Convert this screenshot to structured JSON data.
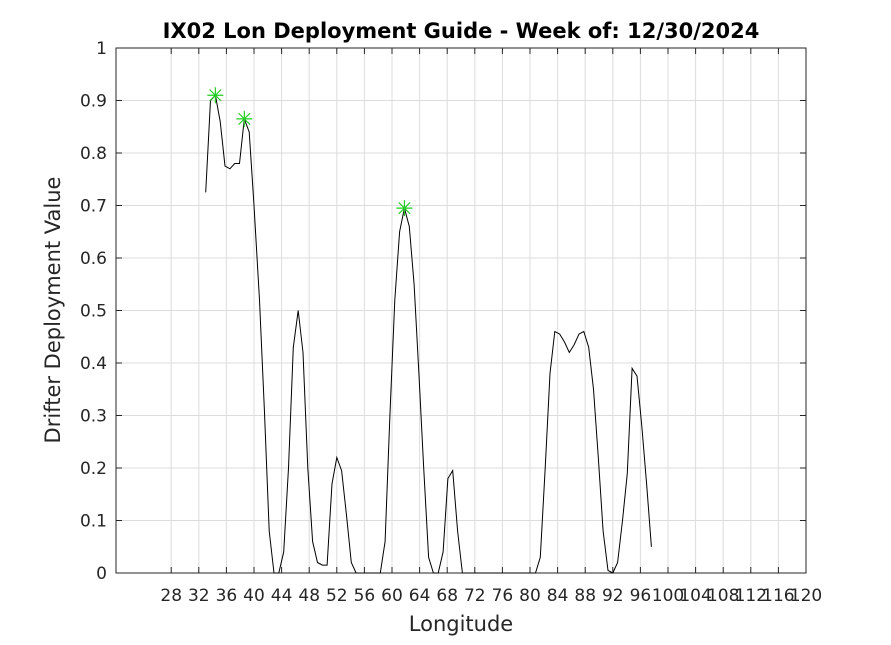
{
  "chart_data": {
    "type": "line",
    "title": "IX02 Lon Deployment Guide - Week of: 12/30/2024",
    "xlabel": "Longitude",
    "ylabel": "Drifter Deployment Value",
    "xlim": [
      20,
      120
    ],
    "ylim": [
      0,
      1
    ],
    "xticks": [
      28,
      32,
      36,
      40,
      44,
      48,
      52,
      56,
      60,
      64,
      68,
      72,
      76,
      80,
      84,
      88,
      92,
      96,
      100,
      104,
      108,
      112,
      116,
      120
    ],
    "yticks": [
      0,
      0.1,
      0.2,
      0.3,
      0.4,
      0.5,
      0.6,
      0.7,
      0.8,
      0.9,
      1
    ],
    "ytick_labels": [
      "0",
      "0.1",
      "0.2",
      "0.3",
      "0.4",
      "0.5",
      "0.6",
      "0.7",
      "0.8",
      "0.9",
      "1"
    ],
    "grid": true,
    "series": [
      {
        "color": "#000000",
        "points": [
          [
            33,
            0.725
          ],
          [
            33.7,
            0.9
          ],
          [
            34.4,
            0.91
          ],
          [
            35.1,
            0.86
          ],
          [
            35.8,
            0.775
          ],
          [
            36.5,
            0.77
          ],
          [
            37.2,
            0.78
          ],
          [
            37.9,
            0.78
          ],
          [
            38.6,
            0.865
          ],
          [
            39.3,
            0.84
          ],
          [
            40,
            0.7
          ],
          [
            40.8,
            0.52
          ],
          [
            41.5,
            0.31
          ],
          [
            42.2,
            0.08
          ],
          [
            42.9,
            0.0
          ],
          [
            43.6,
            0.0
          ],
          [
            44.3,
            0.04
          ],
          [
            45,
            0.2
          ],
          [
            45.7,
            0.43
          ],
          [
            46.4,
            0.5
          ],
          [
            47.1,
            0.42
          ],
          [
            47.8,
            0.2
          ],
          [
            48.5,
            0.06
          ],
          [
            49.2,
            0.02
          ],
          [
            49.9,
            0.015
          ],
          [
            50.6,
            0.015
          ],
          [
            51.3,
            0.17
          ],
          [
            52,
            0.22
          ],
          [
            52.7,
            0.195
          ],
          [
            53.4,
            0.11
          ],
          [
            54.1,
            0.02
          ],
          [
            54.8,
            0.0
          ],
          [
            55.5,
            0.0
          ],
          [
            58.3,
            0.0
          ],
          [
            59,
            0.06
          ],
          [
            59.7,
            0.3
          ],
          [
            60.4,
            0.52
          ],
          [
            61.1,
            0.65
          ],
          [
            61.8,
            0.695
          ],
          [
            62.5,
            0.66
          ],
          [
            63.2,
            0.55
          ],
          [
            63.9,
            0.38
          ],
          [
            64.6,
            0.2
          ],
          [
            65.3,
            0.03
          ],
          [
            66,
            0.0
          ],
          [
            66.7,
            0.0
          ],
          [
            67.4,
            0.04
          ],
          [
            68.1,
            0.18
          ],
          [
            68.8,
            0.195
          ],
          [
            69.5,
            0.08
          ],
          [
            70.2,
            0.0
          ],
          [
            80.8,
            0.0
          ],
          [
            81.5,
            0.03
          ],
          [
            82.2,
            0.2
          ],
          [
            82.9,
            0.38
          ],
          [
            83.6,
            0.46
          ],
          [
            84.3,
            0.455
          ],
          [
            85,
            0.44
          ],
          [
            85.7,
            0.42
          ],
          [
            86.4,
            0.435
          ],
          [
            87.1,
            0.455
          ],
          [
            87.8,
            0.46
          ],
          [
            88.5,
            0.43
          ],
          [
            89.2,
            0.35
          ],
          [
            89.9,
            0.22
          ],
          [
            90.6,
            0.08
          ],
          [
            91.3,
            0.005
          ],
          [
            92,
            0.0
          ],
          [
            92.7,
            0.02
          ],
          [
            93.4,
            0.1
          ],
          [
            94.1,
            0.19
          ],
          [
            94.8,
            0.39
          ],
          [
            95.5,
            0.375
          ],
          [
            96.2,
            0.28
          ],
          [
            96.9,
            0.17
          ],
          [
            97.6,
            0.05
          ]
        ]
      }
    ],
    "peaks": [
      {
        "x": 34.4,
        "y": 0.91,
        "color": "#22cc22",
        "marker": "asterisk"
      },
      {
        "x": 38.6,
        "y": 0.865,
        "color": "#22cc22",
        "marker": "asterisk"
      },
      {
        "x": 61.8,
        "y": 0.695,
        "color": "#22cc22",
        "marker": "asterisk"
      }
    ]
  }
}
